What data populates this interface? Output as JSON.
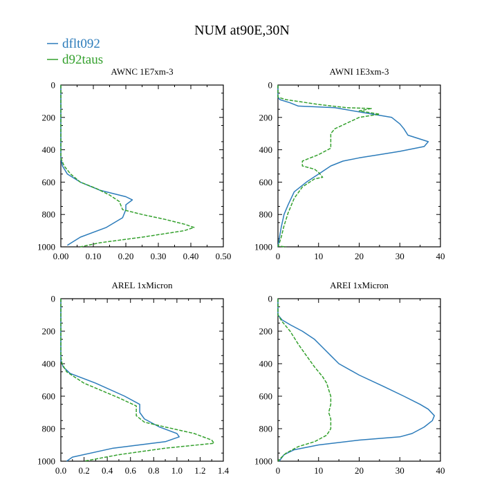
{
  "figure": {
    "title": "NUM at90E,30N"
  },
  "legend": [
    {
      "label": "dflt092",
      "color": "#2b7bba",
      "dash": "solid"
    },
    {
      "label": "d92taus",
      "color": "#33a02c",
      "dash": "dashed"
    }
  ],
  "chart_data": [
    {
      "type": "line",
      "title": "AWNC  1E7xm-3",
      "xlim": [
        0,
        0.5
      ],
      "ylim": [
        1000,
        0
      ],
      "xticks": [
        "0.00",
        "0.10",
        "0.20",
        "0.30",
        "0.40",
        "0.50"
      ],
      "yticks": [
        "0",
        "200",
        "400",
        "600",
        "800",
        "1000"
      ],
      "xtick_values": [
        0,
        0.1,
        0.2,
        0.3,
        0.4,
        0.5
      ],
      "ytick_values": [
        0,
        200,
        400,
        600,
        800,
        1000
      ],
      "series": [
        {
          "name": "dflt092",
          "x": [
            0,
            0,
            0.005,
            0.02,
            0.06,
            0.12,
            0.2,
            0.22,
            0.2,
            0.2,
            0.19,
            0.14,
            0.06,
            0.02
          ],
          "y": [
            0,
            450,
            500,
            550,
            600,
            650,
            690,
            710,
            740,
            770,
            820,
            880,
            940,
            990
          ]
        },
        {
          "name": "d92taus",
          "x": [
            0,
            0,
            0.01,
            0.03,
            0.06,
            0.11,
            0.15,
            0.18,
            0.19,
            0.25,
            0.32,
            0.38,
            0.41,
            0.38,
            0.25,
            0.12,
            0.06
          ],
          "y": [
            0,
            450,
            500,
            550,
            600,
            640,
            680,
            720,
            770,
            800,
            830,
            860,
            880,
            900,
            940,
            975,
            1000
          ]
        }
      ]
    },
    {
      "type": "line",
      "title": "AWNI  1E3xm-3",
      "xlim": [
        0,
        40
      ],
      "ylim": [
        1000,
        0
      ],
      "xticks": [
        "0",
        "10",
        "20",
        "30",
        "40"
      ],
      "yticks": [
        "0",
        "200",
        "400",
        "600",
        "800",
        "1000"
      ],
      "xtick_values": [
        0,
        10,
        20,
        30,
        40
      ],
      "ytick_values": [
        0,
        200,
        400,
        600,
        800,
        1000
      ],
      "series": [
        {
          "name": "dflt092",
          "x": [
            0,
            0,
            0.5,
            3,
            5,
            14,
            28,
            30,
            31,
            32,
            37,
            36,
            30,
            25,
            20,
            16,
            13,
            10,
            7,
            4,
            2.5,
            1.5,
            0.8,
            0.3,
            0
          ],
          "y": [
            0,
            75,
            90,
            110,
            130,
            140,
            200,
            240,
            270,
            310,
            350,
            380,
            410,
            430,
            450,
            470,
            500,
            550,
            600,
            660,
            740,
            800,
            880,
            950,
            1000
          ]
        },
        {
          "name": "d92taus",
          "x": [
            0,
            0,
            2,
            10,
            17,
            23,
            20,
            25,
            20,
            14,
            13,
            13,
            10,
            6,
            6,
            9,
            10,
            11,
            9,
            6,
            4,
            2.5,
            1.5,
            0.8,
            0.3,
            0,
            2
          ],
          "y": [
            0,
            75,
            90,
            120,
            140,
            145,
            160,
            180,
            200,
            270,
            300,
            390,
            430,
            470,
            500,
            520,
            540,
            570,
            580,
            630,
            700,
            790,
            870,
            940,
            980,
            995,
            1000
          ]
        }
      ]
    },
    {
      "type": "line",
      "title": "AREL  1xMicron",
      "xlim": [
        0,
        1.4
      ],
      "ylim": [
        1000,
        0
      ],
      "xticks": [
        "0.0",
        "0.2",
        "0.4",
        "0.6",
        "0.8",
        "1.0",
        "1.2",
        "1.4"
      ],
      "yticks": [
        "0",
        "200",
        "400",
        "600",
        "800",
        "1000"
      ],
      "xtick_values": [
        0,
        0.2,
        0.4,
        0.6,
        0.8,
        1.0,
        1.2,
        1.4
      ],
      "ytick_values": [
        0,
        200,
        400,
        600,
        800,
        1000
      ],
      "series": [
        {
          "name": "dflt092",
          "x": [
            0,
            0,
            0.02,
            0.08,
            0.3,
            0.55,
            0.68,
            0.68,
            0.72,
            0.85,
            1.0,
            1.02,
            0.9,
            0.45,
            0.1,
            0.05
          ],
          "y": [
            0,
            380,
            420,
            460,
            520,
            600,
            650,
            700,
            740,
            790,
            830,
            850,
            880,
            920,
            975,
            1000
          ]
        },
        {
          "name": "d92taus",
          "x": [
            0,
            0,
            0.01,
            0.05,
            0.2,
            0.5,
            0.65,
            0.65,
            0.72,
            0.9,
            1.15,
            1.3,
            1.32,
            0.9,
            0.5,
            0.2
          ],
          "y": [
            0,
            350,
            400,
            450,
            520,
            610,
            660,
            720,
            760,
            790,
            830,
            870,
            890,
            920,
            960,
            1000
          ]
        }
      ]
    },
    {
      "type": "line",
      "title": "AREI  1xMicron",
      "xlim": [
        0,
        40
      ],
      "ylim": [
        1000,
        0
      ],
      "xticks": [
        "0",
        "10",
        "20",
        "30",
        "40"
      ],
      "yticks": [
        "0",
        "200",
        "400",
        "600",
        "800",
        "1000"
      ],
      "xtick_values": [
        0,
        10,
        20,
        30,
        40
      ],
      "ytick_values": [
        0,
        200,
        400,
        600,
        800,
        1000
      ],
      "series": [
        {
          "name": "dflt092",
          "x": [
            0,
            0,
            1,
            3,
            6,
            9,
            11,
            13,
            15,
            20,
            26,
            31,
            35,
            37,
            38.5,
            38,
            36,
            33,
            30,
            20,
            10,
            4,
            1.5,
            0.3
          ],
          "y": [
            0,
            100,
            130,
            160,
            200,
            250,
            300,
            350,
            400,
            470,
            540,
            600,
            650,
            680,
            720,
            750,
            790,
            830,
            850,
            870,
            900,
            930,
            960,
            1000
          ]
        },
        {
          "name": "d92taus",
          "x": [
            0,
            0,
            1,
            3,
            5,
            7,
            9,
            11,
            12,
            12.5,
            13,
            13,
            12.5,
            13,
            13,
            12,
            9,
            5,
            2,
            0.5,
            0
          ],
          "y": [
            0,
            100,
            140,
            200,
            280,
            350,
            420,
            480,
            520,
            560,
            600,
            650,
            700,
            740,
            800,
            840,
            880,
            910,
            950,
            985,
            1000
          ]
        }
      ]
    }
  ]
}
